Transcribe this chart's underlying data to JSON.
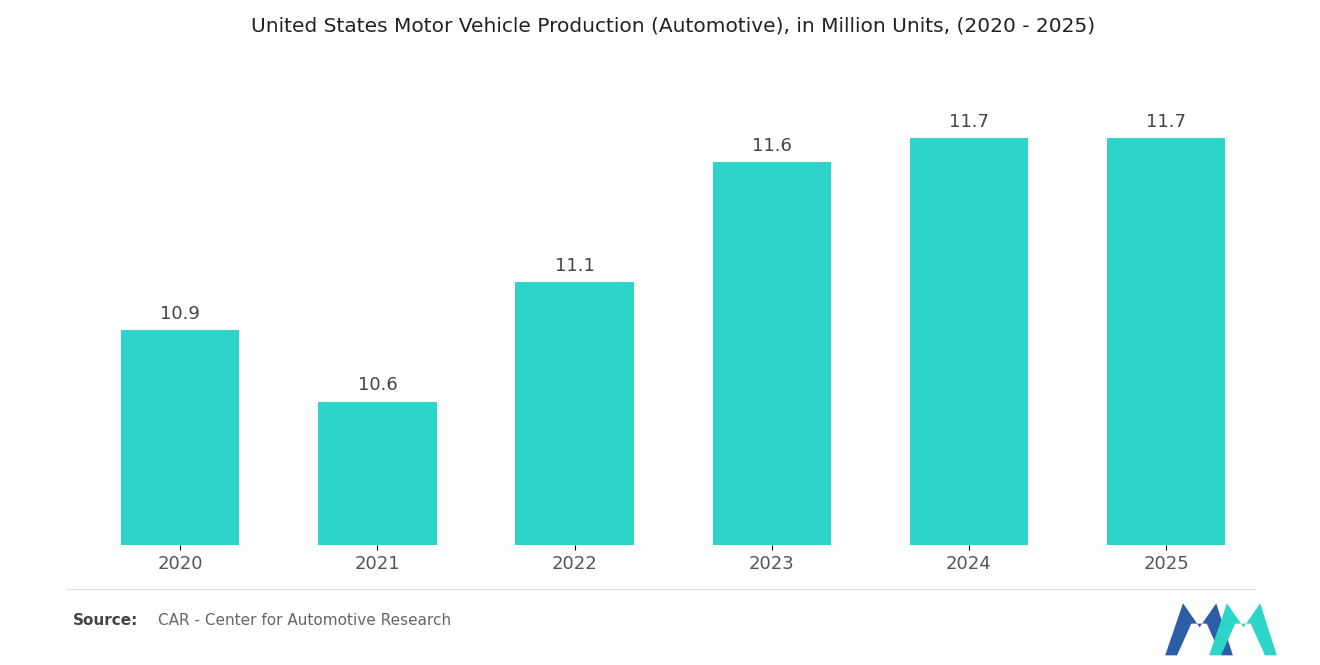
{
  "title": "United States Motor Vehicle Production (Automotive), in Million Units, (2020 - 2025)",
  "categories": [
    "2020",
    "2021",
    "2022",
    "2023",
    "2024",
    "2025"
  ],
  "values": [
    10.9,
    10.6,
    11.1,
    11.6,
    11.7,
    11.7
  ],
  "bar_color": "#2DD4C8",
  "background_color": "#ffffff",
  "ylim": [
    10.0,
    12.0
  ],
  "title_fontsize": 14.5,
  "label_fontsize": 13,
  "tick_fontsize": 13,
  "source_text": "CAR - Center for Automotive Research",
  "source_label": "Source:",
  "bar_width": 0.6,
  "logo_blue": "#2B5EA7",
  "logo_teal": "#2DD4C8"
}
